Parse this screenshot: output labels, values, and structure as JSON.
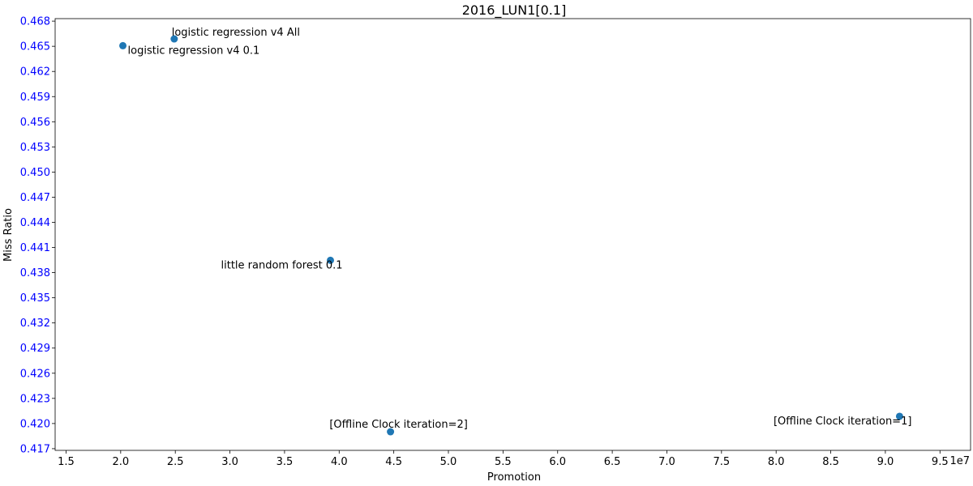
{
  "chart_data": {
    "type": "scatter",
    "title": "2016_LUN1[0.1]",
    "xlabel": "Promotion",
    "ylabel": "Miss Ratio",
    "x_offset_text": "1e7",
    "xlim": [
      1.4,
      9.78
    ],
    "ylim": [
      0.4168,
      0.4683
    ],
    "x_ticks": [
      "1.5",
      "2.0",
      "2.5",
      "3.0",
      "3.5",
      "4.0",
      "4.5",
      "5.0",
      "5.5",
      "6.0",
      "6.5",
      "7.0",
      "7.5",
      "8.0",
      "8.5",
      "9.0",
      "9.5"
    ],
    "y_ticks": [
      "0.417",
      "0.420",
      "0.423",
      "0.426",
      "0.429",
      "0.432",
      "0.435",
      "0.438",
      "0.441",
      "0.444",
      "0.447",
      "0.450",
      "0.453",
      "0.456",
      "0.459",
      "0.462",
      "0.465",
      "0.468"
    ],
    "grid": false,
    "colors": {
      "points": "#1f77b4",
      "y_tick_labels": "#0000ff",
      "x_tick_labels": "#000000"
    },
    "points": [
      {
        "x": 2.02,
        "y": 0.46507,
        "label": "logistic regression v4 0.1",
        "anchor": "start"
      },
      {
        "x": 2.49,
        "y": 0.46588,
        "label": "logistic regression v4 All",
        "anchor": "middle"
      },
      {
        "x": 3.92,
        "y": 0.43947,
        "label": "little random forest 0.1",
        "anchor": "end"
      },
      {
        "x": 4.47,
        "y": 0.41902,
        "label": "[Offline Clock iteration=2]",
        "anchor": "middle"
      },
      {
        "x": 9.13,
        "y": 0.42086,
        "label": "[Offline Clock iteration=1]",
        "anchor": "end"
      }
    ]
  }
}
